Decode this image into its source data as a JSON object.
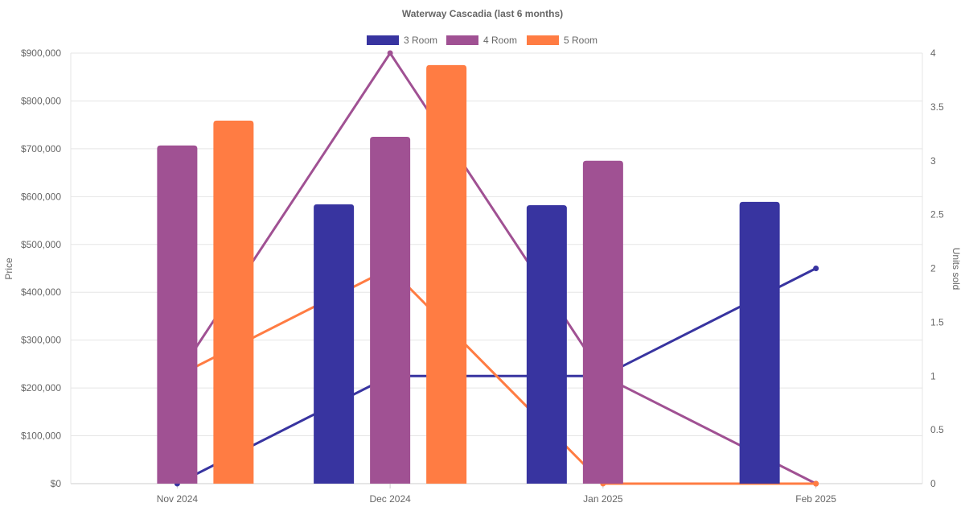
{
  "chart_data": {
    "type": "bar+line",
    "title": "Waterway Cascadia (last 6 months)",
    "categories": [
      "Nov 2024",
      "Dec 2024",
      "Jan 2025",
      "Feb 2025"
    ],
    "ylabel": "Price",
    "y2label": "Units sold",
    "ylim": [
      0,
      900000
    ],
    "y2lim": [
      0,
      4
    ],
    "yticks": [
      "$0",
      "$100,000",
      "$200,000",
      "$300,000",
      "$400,000",
      "$500,000",
      "$600,000",
      "$700,000",
      "$800,000",
      "$900,000"
    ],
    "y2ticks": [
      "0",
      "0.5",
      "1",
      "1.5",
      "2",
      "2.5",
      "3",
      "3.5",
      "4"
    ],
    "legend_position": "top",
    "grid": true,
    "series": [
      {
        "name": "3 Room",
        "color": "#3834a0",
        "price": [
          null,
          584000,
          582000,
          589000
        ],
        "units": [
          0,
          1,
          1,
          2
        ]
      },
      {
        "name": "4 Room",
        "color": "#a05193",
        "price": [
          707000,
          725000,
          675000,
          null
        ],
        "units": [
          1,
          4,
          1,
          0
        ]
      },
      {
        "name": "5 Room",
        "color": "#ff7c43",
        "price": [
          759000,
          875000,
          null,
          null
        ],
        "units": [
          1,
          2,
          0,
          0
        ]
      }
    ]
  }
}
